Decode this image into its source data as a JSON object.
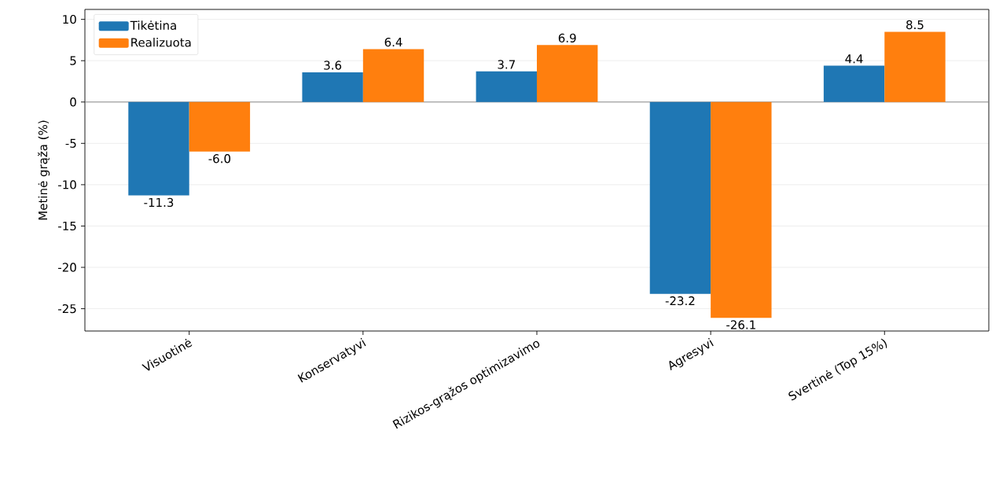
{
  "chart_data": {
    "type": "bar",
    "ylabel": "Metinė grąža (%)",
    "categories": [
      "Visuotinė",
      "Konservatyvi",
      "Rizikos-grąžos optimizavimo",
      "Agresyvi",
      "Svertinė (Top 15%)"
    ],
    "series": [
      {
        "name": "Tikėtina",
        "color": "#1f77b4",
        "values": [
          -11.3,
          3.6,
          3.7,
          -23.2,
          4.4
        ],
        "value_labels": [
          "-11.3",
          "3.6",
          "3.7",
          "-23.2",
          "4.4"
        ]
      },
      {
        "name": "Realizuota",
        "color": "#ff7f0e",
        "values": [
          -6.0,
          6.4,
          6.9,
          -26.1,
          8.5
        ],
        "value_labels": [
          "-6.0",
          "6.4",
          "6.9",
          "-26.1",
          "8.5"
        ]
      }
    ],
    "ylim": [
      -27.7,
      11.2
    ],
    "yticks": [
      -25,
      -20,
      -15,
      -10,
      -5,
      0,
      5,
      10
    ],
    "grid": "y",
    "legend": "top left",
    "ref_lines": [
      {
        "axis": "y",
        "value": 0,
        "color": "#808080"
      }
    ]
  }
}
